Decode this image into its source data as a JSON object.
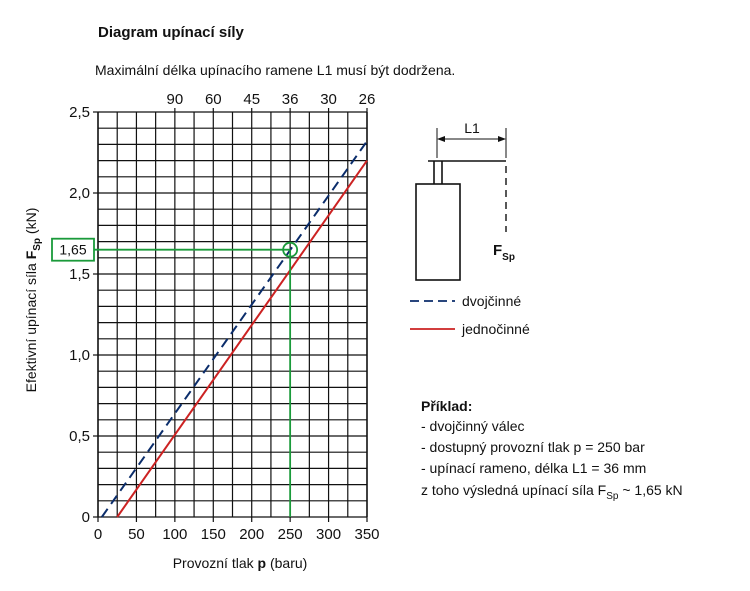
{
  "title": "Diagram upínací síly",
  "subtitle": "Maximální délka upínacího ramene L1 musí být dodržena.",
  "chart_data": {
    "type": "line",
    "xlabel": {
      "prefix": "Provozní tlak ",
      "bold": "p",
      "suffix": " (baru)"
    },
    "ylabel": {
      "prefix": "Efektivní upínací síla ",
      "bold": "F",
      "sub": "Sp",
      "suffix": " (kN)"
    },
    "xlim": [
      0,
      350
    ],
    "ylim": [
      0,
      2.5
    ],
    "x_ticks": [
      {
        "v": 0,
        "t": "0"
      },
      {
        "v": 50,
        "t": "50"
      },
      {
        "v": 100,
        "t": "100"
      },
      {
        "v": 150,
        "t": "150"
      },
      {
        "v": 200,
        "t": "200"
      },
      {
        "v": 250,
        "t": "250"
      },
      {
        "v": 300,
        "t": "300"
      },
      {
        "v": 350,
        "t": "350"
      }
    ],
    "y_ticks": [
      {
        "v": 0,
        "t": "0"
      },
      {
        "v": 0.5,
        "t": "0,5"
      },
      {
        "v": 1.0,
        "t": "1,0"
      },
      {
        "v": 1.5,
        "t": "1,5"
      },
      {
        "v": 2.0,
        "t": "2,0"
      },
      {
        "v": 2.5,
        "t": "2,5"
      }
    ],
    "y_grid_step": 0.1,
    "x_grid_step": 25,
    "top_axis_ticks": [
      {
        "v": 100,
        "t": "90"
      },
      {
        "v": 150,
        "t": "60"
      },
      {
        "v": 200,
        "t": "45"
      },
      {
        "v": 250,
        "t": "36"
      },
      {
        "v": 300,
        "t": "30"
      },
      {
        "v": 350,
        "t": "26"
      }
    ],
    "series": [
      {
        "name": "dvojčinné",
        "style": "dashed",
        "color": "#0b2d6b",
        "points": [
          [
            5,
            0
          ],
          [
            350,
            2.32
          ]
        ]
      },
      {
        "name": "jednočinné",
        "style": "solid",
        "color": "#cc2222",
        "points": [
          [
            25,
            0
          ],
          [
            350,
            2.2
          ]
        ]
      }
    ],
    "highlight": {
      "x": 250,
      "y": 1.65,
      "label": "1,65",
      "color": "#1a9a3a"
    }
  },
  "schematic": {
    "l1_label": "L1",
    "force_label": "F",
    "force_sub": "Sp"
  },
  "legend": [
    {
      "label": "dvojčinné",
      "style": "dashed",
      "color": "#0b2d6b"
    },
    {
      "label": "jednočinné",
      "style": "solid",
      "color": "#cc2222"
    }
  ],
  "example": {
    "heading": "Příklad:",
    "line1": "- dvojčinný válec",
    "line2": "- dostupný provozní tlak p = 250 bar",
    "line3": "- upínací rameno, délka L1 = 36 mm",
    "line4_prefix": "z toho výsledná upínací síla F",
    "line4_sub": "Sp",
    "line4_suffix": " ~ 1,65 kN"
  }
}
